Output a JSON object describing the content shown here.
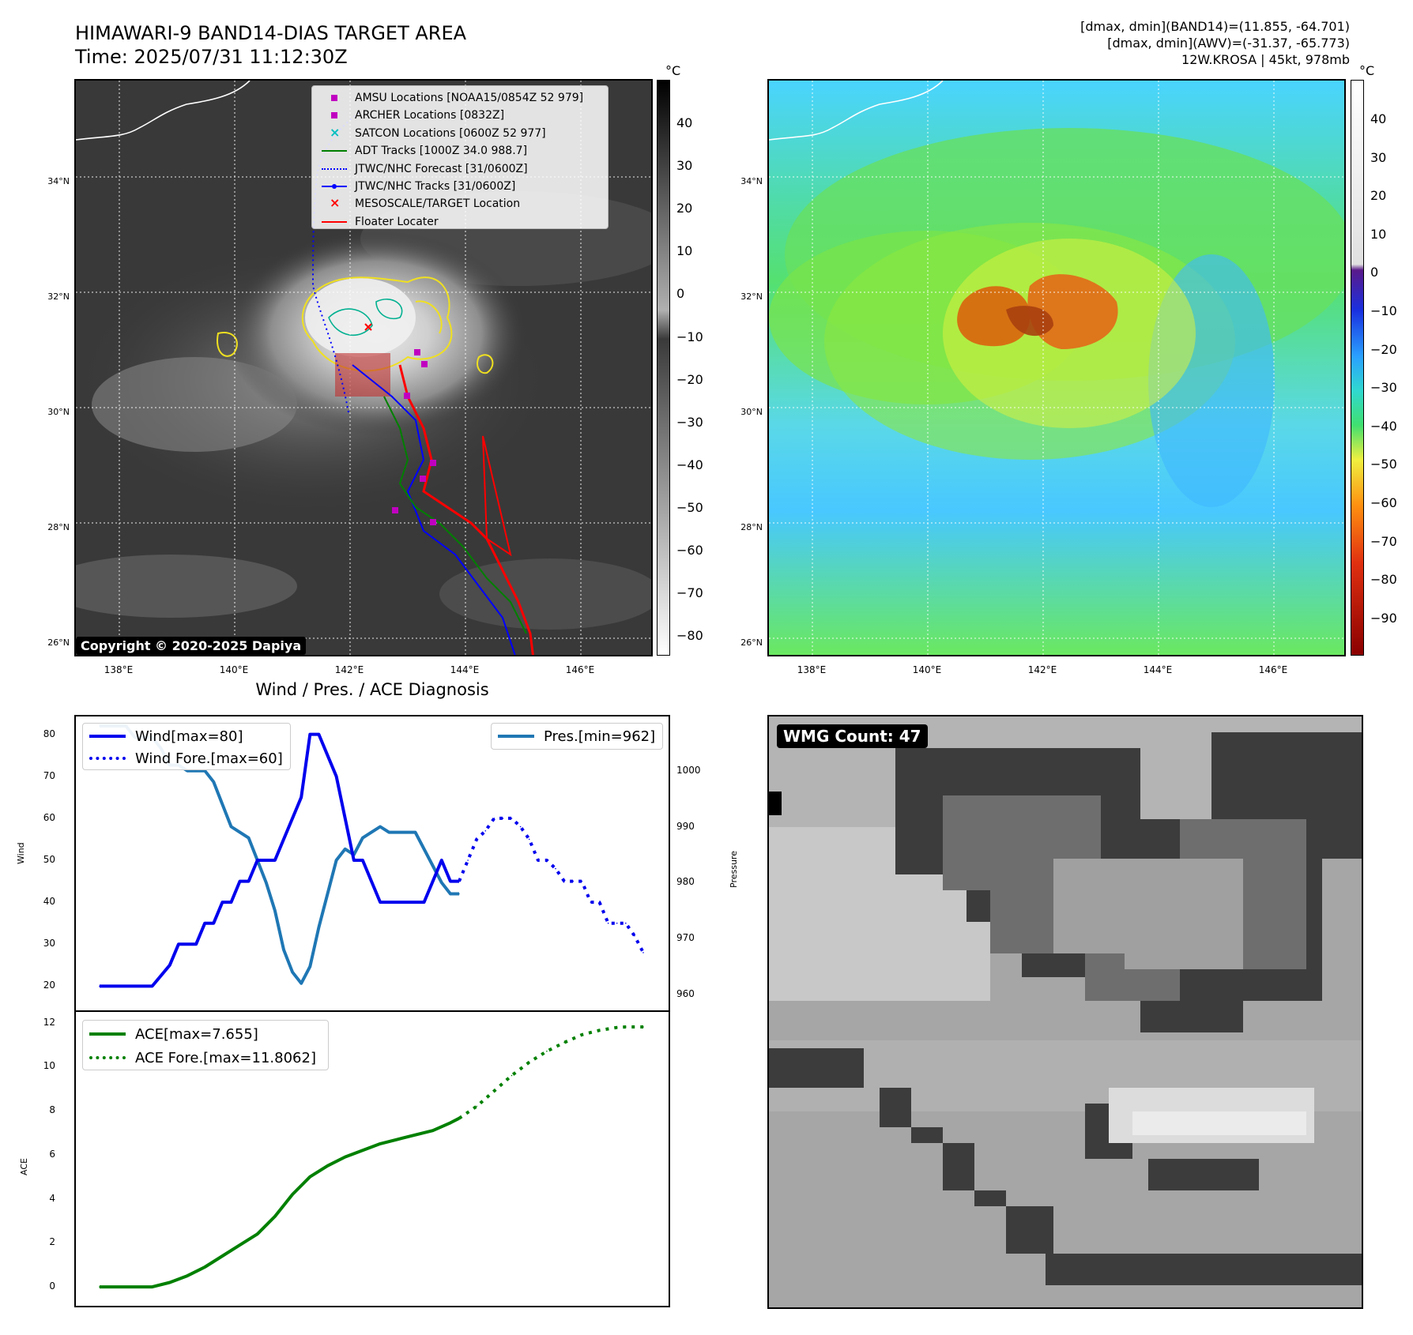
{
  "header": {
    "title": "HIMAWARI-9 BAND14-DIAS TARGET AREA",
    "time": "Time: 2025/07/31 11:12:30Z",
    "info_band14": "[dmax, dmin](BAND14)=(11.855, -64.701)",
    "info_awv": "[dmax, dmin](AWV)=(-31.37, -65.773)",
    "info_storm": "12W.KROSA | 45kt, 978mb"
  },
  "map_axes": {
    "lat_labels": [
      "34°N",
      "32°N",
      "30°N",
      "28°N",
      "26°N"
    ],
    "lon_labels": [
      "138°E",
      "140°E",
      "142°E",
      "144°E",
      "146°E"
    ]
  },
  "ir_map": {
    "legend": [
      {
        "label": "AMSU Locations [NOAA15/0854Z 52 979]",
        "symbol": "square",
        "color": "#c000c0"
      },
      {
        "label": "ARCHER Locations [0832Z]",
        "symbol": "square",
        "color": "#c000c0"
      },
      {
        "label": "SATCON Locations [0600Z 52 977]",
        "symbol": "x",
        "color": "#00bfbf"
      },
      {
        "label": "ADT Tracks [1000Z 34.0 988.7]",
        "symbol": "line",
        "color": "#008000"
      },
      {
        "label": "JTWC/NHC Forecast [31/0600Z]",
        "symbol": "dotted",
        "color": "#0000ff"
      },
      {
        "label": "JTWC/NHC Tracks [31/0600Z]",
        "symbol": "line-dot",
        "color": "#0000ff"
      },
      {
        "label": "MESOSCALE/TARGET Location",
        "symbol": "x",
        "color": "#ff0000"
      },
      {
        "label": "Floater Locater",
        "symbol": "line",
        "color": "#ff0000"
      }
    ],
    "copyright": "Copyright © 2020-2025 Dapiya",
    "colorbar_unit": "°C",
    "colorbar_ticks": [
      "40",
      "30",
      "20",
      "10",
      "0",
      "−10",
      "−20",
      "−30",
      "−40",
      "−50",
      "−60",
      "−70",
      "−80"
    ]
  },
  "awv_map": {
    "colorbar_unit": "°C",
    "colorbar_ticks": [
      "40",
      "30",
      "20",
      "10",
      "0",
      "−10",
      "−20",
      "−30",
      "−40",
      "−50",
      "−60",
      "−70",
      "−80",
      "−90"
    ]
  },
  "wmg": {
    "label": "WMG Count: 47"
  },
  "chart_data": [
    {
      "type": "line",
      "title": "Wind / Pres. / ACE Diagnosis",
      "ylabel": "Wind",
      "ylabel_right": "Pressure",
      "ylim": [
        18,
        82
      ],
      "ylim_right": [
        960,
        1008
      ],
      "yticks": [
        "80",
        "70",
        "60",
        "50",
        "40",
        "30",
        "20"
      ],
      "yticks_right": [
        "1000",
        "990",
        "980",
        "970",
        "960"
      ],
      "series": [
        {
          "name": "Wind[max=80]",
          "style": "solid",
          "color": "#0000ee",
          "axis": "left",
          "x": [
            0,
            3,
            6,
            8,
            9,
            11,
            12,
            13,
            14,
            15,
            16,
            17,
            18,
            19,
            20,
            21,
            22,
            23,
            24,
            25,
            27,
            28,
            29,
            30,
            31,
            32,
            33,
            35,
            36,
            37,
            38,
            39,
            40,
            41
          ],
          "values": [
            20,
            20,
            20,
            25,
            30,
            30,
            35,
            35,
            40,
            40,
            45,
            45,
            50,
            50,
            50,
            55,
            60,
            65,
            80,
            80,
            70,
            60,
            50,
            50,
            45,
            40,
            40,
            40,
            40,
            40,
            45,
            50,
            45,
            45
          ]
        },
        {
          "name": "Wind Fore.[max=60]",
          "style": "dotted",
          "color": "#0000ee",
          "axis": "left",
          "x": [
            41,
            42,
            43,
            44,
            45,
            46,
            47,
            48,
            49,
            50,
            51,
            52,
            53,
            54,
            55,
            56,
            57,
            58,
            59,
            60,
            61,
            62
          ],
          "values": [
            45,
            50,
            55,
            57,
            60,
            60,
            60,
            58,
            55,
            50,
            50,
            48,
            45,
            45,
            45,
            40,
            40,
            35,
            35,
            35,
            32,
            28
          ]
        },
        {
          "name": "Pres.[min=962]",
          "style": "solid",
          "color": "#1f77b4",
          "axis": "right",
          "x": [
            0,
            1,
            2,
            3,
            4,
            5,
            6,
            7,
            8,
            9,
            10,
            11,
            12,
            13,
            14,
            15,
            16,
            17,
            18,
            19,
            20,
            21,
            22,
            23,
            24,
            25,
            26,
            27,
            28,
            29,
            30,
            31,
            32,
            33,
            34,
            35,
            36,
            37,
            38,
            39,
            40,
            41
          ],
          "values": [
            1008,
            1008,
            1008,
            1008,
            1006,
            1006,
            1006,
            1004,
            1001,
            1001,
            1000,
            1000,
            1000,
            998,
            994,
            990,
            989,
            988,
            984,
            980,
            975,
            968,
            964,
            962,
            965,
            972,
            978,
            984,
            986,
            985,
            988,
            989,
            990,
            989,
            989,
            989,
            989,
            986,
            983,
            980,
            978,
            978
          ]
        }
      ]
    },
    {
      "type": "line",
      "ylabel": "ACE",
      "ylim": [
        -0.5,
        12.2
      ],
      "yticks": [
        "12",
        "10",
        "8",
        "6",
        "4",
        "2",
        "0"
      ],
      "series": [
        {
          "name": "ACE[max=7.655]",
          "style": "solid",
          "color": "#008000",
          "x": [
            0,
            3,
            6,
            8,
            10,
            12,
            14,
            16,
            18,
            20,
            22,
            24,
            26,
            28,
            30,
            32,
            34,
            36,
            38,
            40,
            41
          ],
          "values": [
            0,
            0,
            0,
            0.2,
            0.5,
            0.9,
            1.4,
            1.9,
            2.4,
            3.2,
            4.2,
            5.0,
            5.5,
            5.9,
            6.2,
            6.5,
            6.7,
            6.9,
            7.1,
            7.45,
            7.655
          ]
        },
        {
          "name": "ACE Fore.[max=11.8062]",
          "style": "dotted",
          "color": "#008000",
          "x": [
            41,
            43,
            45,
            47,
            49,
            51,
            53,
            55,
            57,
            59,
            60,
            62
          ],
          "values": [
            7.655,
            8.2,
            8.9,
            9.6,
            10.2,
            10.7,
            11.1,
            11.45,
            11.65,
            11.78,
            11.8062,
            11.8062
          ]
        }
      ]
    }
  ]
}
